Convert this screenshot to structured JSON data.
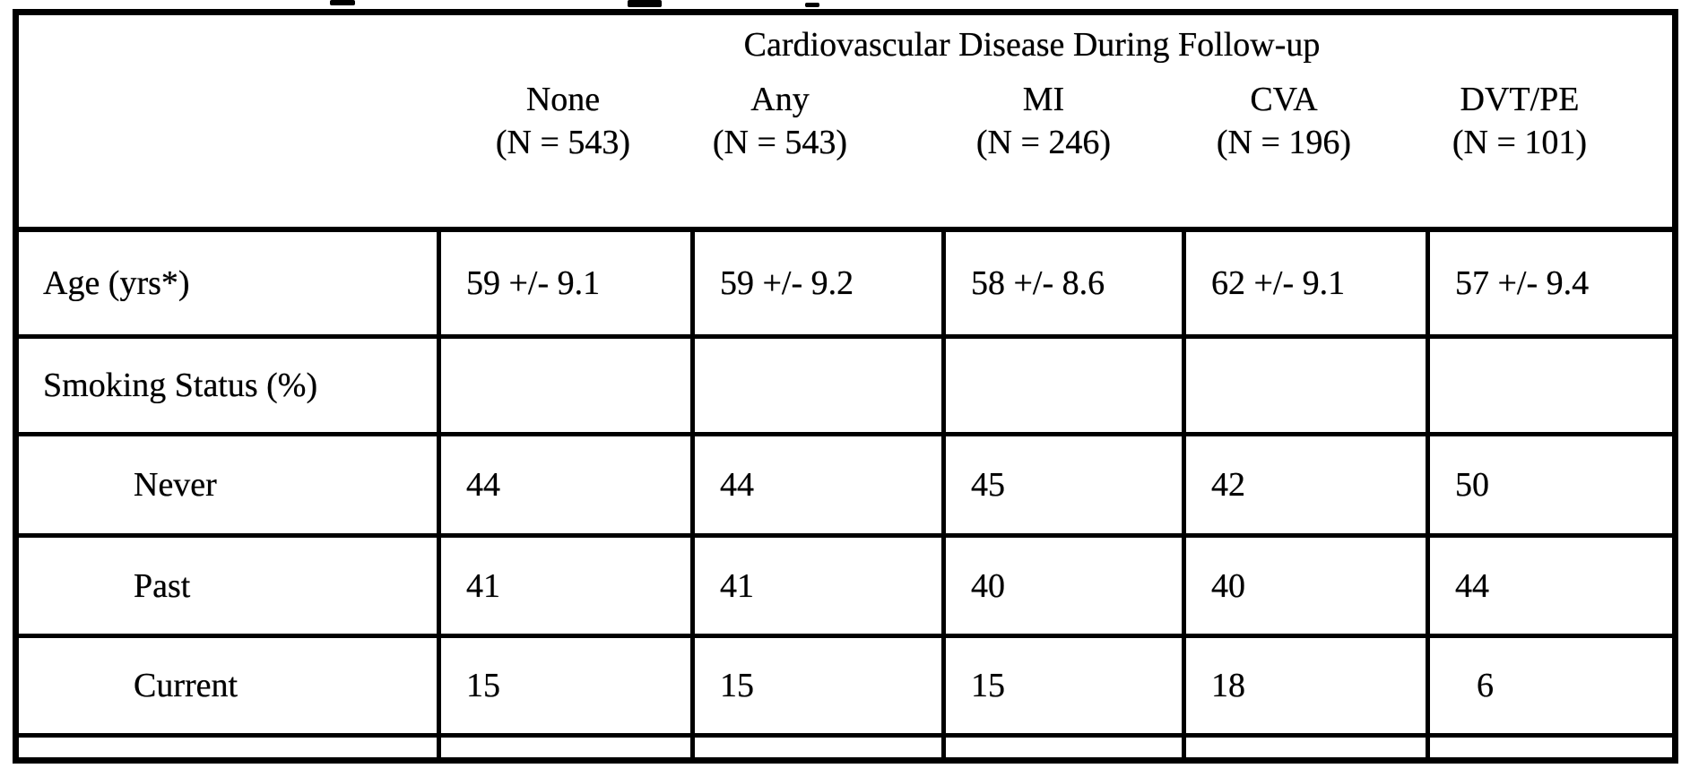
{
  "table": {
    "title": "Cardiovascular Disease During Follow-up",
    "columns": [
      {
        "label": "None",
        "n_label": "(N = 543)"
      },
      {
        "label": "Any",
        "n_label": "(N = 543)"
      },
      {
        "label": "MI",
        "n_label": "(N = 246)"
      },
      {
        "label": "CVA",
        "n_label": "(N = 196)"
      },
      {
        "label": "DVT/PE",
        "n_label": "(N = 101)"
      }
    ],
    "rows": [
      {
        "label": "Age (yrs*)",
        "values": [
          "59 +/- 9.1",
          "59 +/- 9.2",
          "58 +/- 8.6",
          "62 +/- 9.1",
          "57 +/- 9.4"
        ]
      },
      {
        "label": "Smoking Status (%)",
        "values": [
          "",
          "",
          "",
          "",
          ""
        ]
      },
      {
        "label": "Never",
        "values": [
          "44",
          "44",
          "45",
          "42",
          "50"
        ]
      },
      {
        "label": "Past",
        "values": [
          "41",
          "41",
          "40",
          "40",
          "44"
        ]
      },
      {
        "label": "Current",
        "values": [
          "15",
          "15",
          "15",
          "18",
          "6"
        ]
      }
    ]
  }
}
